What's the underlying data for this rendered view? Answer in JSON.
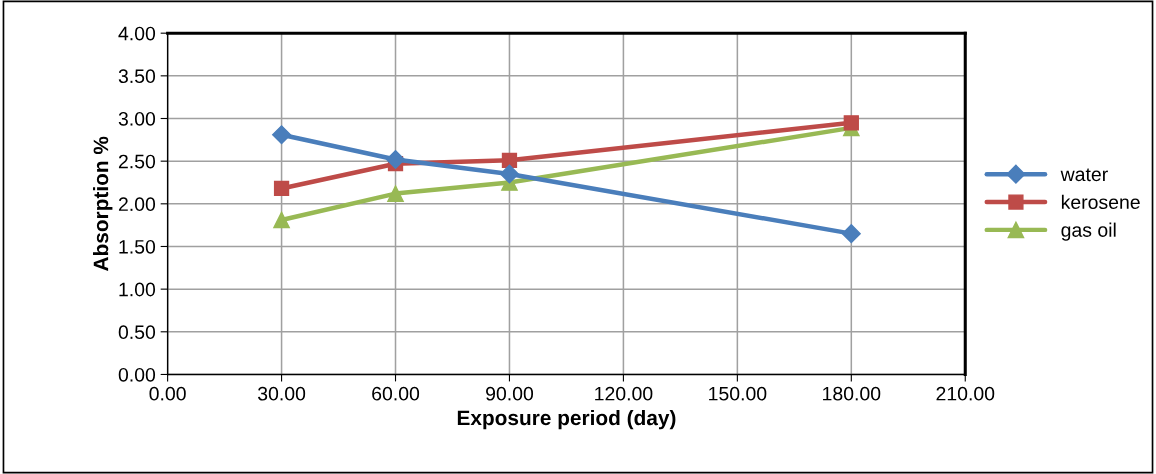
{
  "chart_data": {
    "type": "line",
    "xlabel": "Exposure period (day)",
    "ylabel": "Absorption %",
    "x": [
      30,
      60,
      90,
      180
    ],
    "series": [
      {
        "name": "water",
        "color": "#4a7ebb",
        "marker": "diamond",
        "values": [
          2.81,
          2.52,
          2.35,
          1.65
        ]
      },
      {
        "name": "kerosene",
        "color": "#be4b48",
        "marker": "square",
        "values": [
          2.18,
          2.47,
          2.51,
          2.95
        ]
      },
      {
        "name": "gas oil",
        "color": "#98b954",
        "marker": "triangle",
        "values": [
          1.81,
          2.12,
          2.25,
          2.89
        ]
      }
    ],
    "xlim": [
      0,
      210
    ],
    "xticks": [
      {
        "value": 0,
        "label": "0.00"
      },
      {
        "value": 30,
        "label": "30.00"
      },
      {
        "value": 60,
        "label": "60.00"
      },
      {
        "value": 90,
        "label": "90.00"
      },
      {
        "value": 120,
        "label": "120.00"
      },
      {
        "value": 150,
        "label": "150.00"
      },
      {
        "value": 180,
        "label": "180.00"
      },
      {
        "value": 210,
        "label": "210.00"
      }
    ],
    "ylim": [
      0,
      4
    ],
    "yticks": [
      {
        "value": 0,
        "label": "0.00"
      },
      {
        "value": 0.5,
        "label": "0.50"
      },
      {
        "value": 1,
        "label": "1.00"
      },
      {
        "value": 1.5,
        "label": "1.50"
      },
      {
        "value": 2,
        "label": "2.00"
      },
      {
        "value": 2.5,
        "label": "2.50"
      },
      {
        "value": 3,
        "label": "3.00"
      },
      {
        "value": 3.5,
        "label": "3.50"
      },
      {
        "value": 4,
        "label": "4.00"
      }
    ],
    "grid": true,
    "legend": "right",
    "line_style": "solid"
  }
}
